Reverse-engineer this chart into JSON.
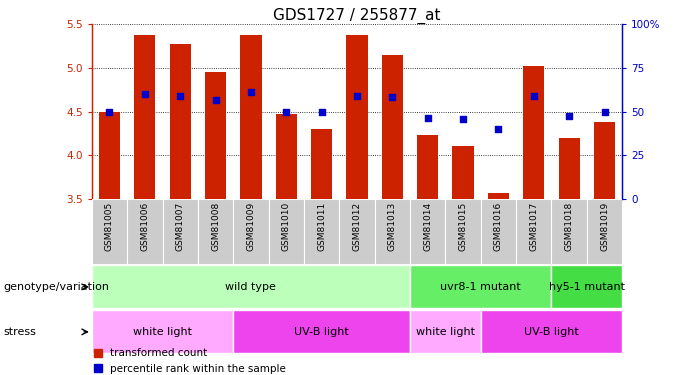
{
  "title": "GDS1727 / 255877_at",
  "samples": [
    "GSM81005",
    "GSM81006",
    "GSM81007",
    "GSM81008",
    "GSM81009",
    "GSM81010",
    "GSM81011",
    "GSM81012",
    "GSM81013",
    "GSM81014",
    "GSM81015",
    "GSM81016",
    "GSM81017",
    "GSM81018",
    "GSM81019"
  ],
  "bar_values": [
    4.5,
    5.38,
    5.28,
    4.95,
    5.38,
    4.47,
    4.3,
    5.38,
    5.15,
    4.23,
    4.1,
    3.57,
    5.02,
    4.2,
    4.38
  ],
  "dot_values": [
    4.5,
    4.7,
    4.68,
    4.63,
    4.72,
    4.5,
    4.5,
    4.68,
    4.67,
    4.43,
    4.42,
    4.3,
    4.68,
    4.45,
    4.5
  ],
  "ylim": [
    3.5,
    5.5
  ],
  "y2lim": [
    0,
    100
  ],
  "yticks": [
    3.5,
    4.0,
    4.5,
    5.0,
    5.5
  ],
  "y2ticks": [
    0,
    25,
    50,
    75,
    100
  ],
  "y2ticklabels": [
    "0",
    "25",
    "50",
    "75",
    "100%"
  ],
  "bar_color": "#cc2200",
  "dot_color": "#0000cc",
  "xtick_bg": "#cccccc",
  "genotype_groups": [
    {
      "label": "wild type",
      "start": 0,
      "end": 9,
      "color": "#bbffbb"
    },
    {
      "label": "uvr8-1 mutant",
      "start": 9,
      "end": 13,
      "color": "#66ee66"
    },
    {
      "label": "hy5-1 mutant",
      "start": 13,
      "end": 15,
      "color": "#44dd44"
    }
  ],
  "stress_groups": [
    {
      "label": "white light",
      "start": 0,
      "end": 4,
      "color": "#ffaaff"
    },
    {
      "label": "UV-B light",
      "start": 4,
      "end": 9,
      "color": "#ee44ee"
    },
    {
      "label": "white light",
      "start": 9,
      "end": 11,
      "color": "#ffaaff"
    },
    {
      "label": "UV-B light",
      "start": 11,
      "end": 15,
      "color": "#ee44ee"
    }
  ],
  "legend_bar_label": "transformed count",
  "legend_dot_label": "percentile rank within the sample",
  "genotype_label": "genotype/variation",
  "stress_label": "stress",
  "title_fontsize": 11,
  "tick_fontsize": 6.5,
  "label_fontsize": 8,
  "legend_fontsize": 7.5
}
